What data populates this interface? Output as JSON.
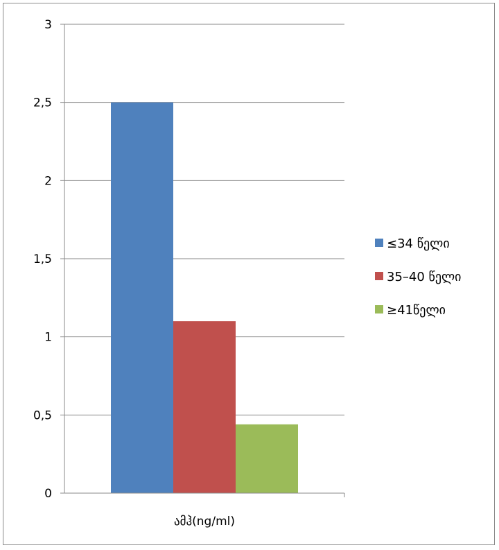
{
  "chart_data": {
    "type": "bar",
    "categories": [
      "ამჰ(ng/ml)"
    ],
    "series": [
      {
        "name": "≤34 წელი",
        "values": [
          2.5
        ],
        "color": "#4f81bd"
      },
      {
        "name": "35–40 წელი",
        "values": [
          1.1
        ],
        "color": "#c0504d"
      },
      {
        "name": "≥41წელი",
        "values": [
          0.44
        ],
        "color": "#9bbb59"
      }
    ],
    "ylim": [
      0,
      3
    ],
    "yticks": [
      "0",
      "0,5",
      "1",
      "1,5",
      "2",
      "2,5",
      "3"
    ],
    "grid": true,
    "legend": "right"
  }
}
